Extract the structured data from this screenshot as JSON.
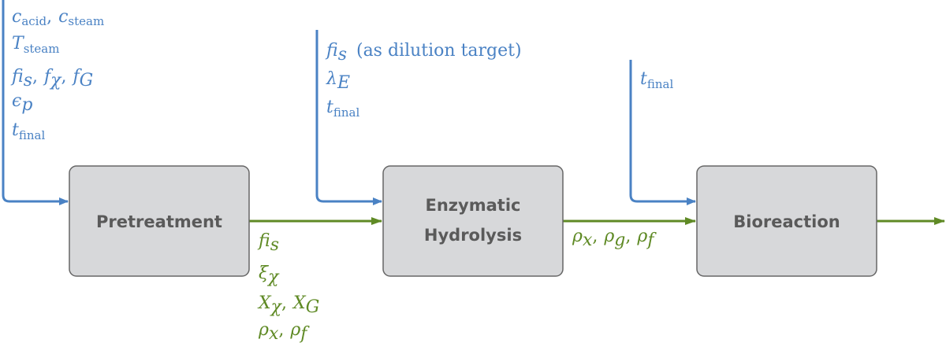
{
  "colors": {
    "input": "#4a82c4",
    "output": "#5f8a25",
    "box_fill": "#d7d8da",
    "box_stroke": "#666666",
    "box_text": "#5a5a5a"
  },
  "boxes": {
    "pretreatment": "Pretreatment",
    "hydrolysis_line1": "Enzymatic",
    "hydrolysis_line2": "Hydrolysis",
    "bioreaction": "Bioreaction"
  },
  "pretreatment_inputs": {
    "c_acid": "c",
    "c_acid_sub": "acid",
    "c_steam": "c",
    "c_steam_sub": "steam",
    "t_steam": "T",
    "t_steam_sub": "steam",
    "f_is": "f",
    "f_is_sub": "is",
    "f_chi": "f",
    "f_chi_sub": "χ",
    "f_g": "f",
    "f_g_sub": "G",
    "eps": "ϵ",
    "eps_sub": "p",
    "t_final": "t",
    "t_final_sub": "final"
  },
  "hydrolysis_inputs": {
    "f_is": "f",
    "f_is_sub": "is",
    "f_is_note": "(as dilution target)",
    "lambda": "λ",
    "lambda_sub": "E",
    "t_final": "t",
    "t_final_sub": "final"
  },
  "bioreaction_inputs": {
    "t_final": "t",
    "t_final_sub": "final"
  },
  "pretreatment_outputs": {
    "f_is": "f",
    "f_is_sub": "is",
    "xi": "ξ",
    "xi_sub": "χ",
    "x_chi": "X",
    "x_chi_sub": "χ",
    "x_g": "X",
    "x_g_sub": "G",
    "rho_x": "ρ",
    "rho_x_sub": "x",
    "rho_f": "ρ",
    "rho_f_sub": "f"
  },
  "hydrolysis_outputs": {
    "rho_x": "ρ",
    "rho_x_sub": "x",
    "rho_g": "ρ",
    "rho_g_sub": "g",
    "rho_f": "ρ",
    "rho_f_sub": "f"
  },
  "separator": ","
}
